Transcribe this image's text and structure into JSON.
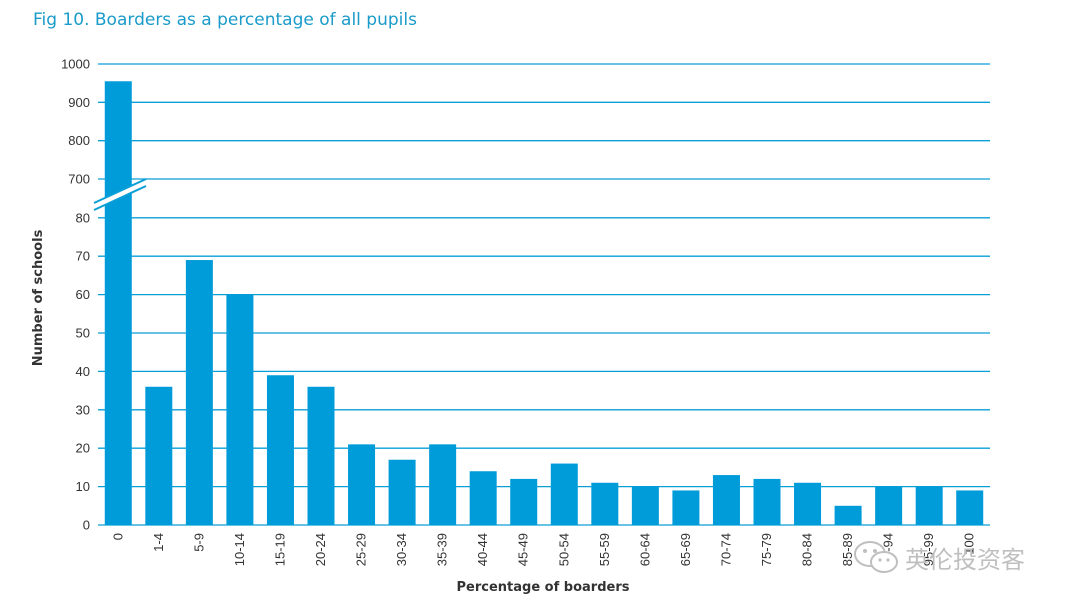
{
  "title": "Fig 10. Boarders as a percentage of all pupils",
  "watermark": "英伦投资客",
  "colors": {
    "bar": "#009bd9",
    "grid": "#0a9fd6",
    "title": "#1a9bc9"
  },
  "chart_data": {
    "type": "bar",
    "title": "Fig 10. Boarders as a percentage of all pupils",
    "xlabel": "Percentage of boarders",
    "ylabel": "Number of schools",
    "axis_break": {
      "lower_range": [
        0,
        80
      ],
      "upper_range": [
        700,
        1000
      ]
    },
    "y_ticks": [
      0,
      10,
      20,
      30,
      40,
      50,
      60,
      70,
      80,
      700,
      800,
      900,
      1000
    ],
    "categories": [
      "0",
      "1-4",
      "5-9",
      "10-14",
      "15-19",
      "20-24",
      "25-29",
      "30-34",
      "35-39",
      "40-44",
      "45-49",
      "50-54",
      "55-59",
      "60-64",
      "65-69",
      "70-74",
      "75-79",
      "80-84",
      "85-89",
      "90-94",
      "95-99",
      "100"
    ],
    "values": [
      955,
      36,
      69,
      60,
      39,
      36,
      21,
      17,
      21,
      14,
      12,
      16,
      11,
      10,
      9,
      13,
      12,
      11,
      5,
      10,
      10,
      9
    ],
    "grid": true,
    "legend": "none"
  }
}
